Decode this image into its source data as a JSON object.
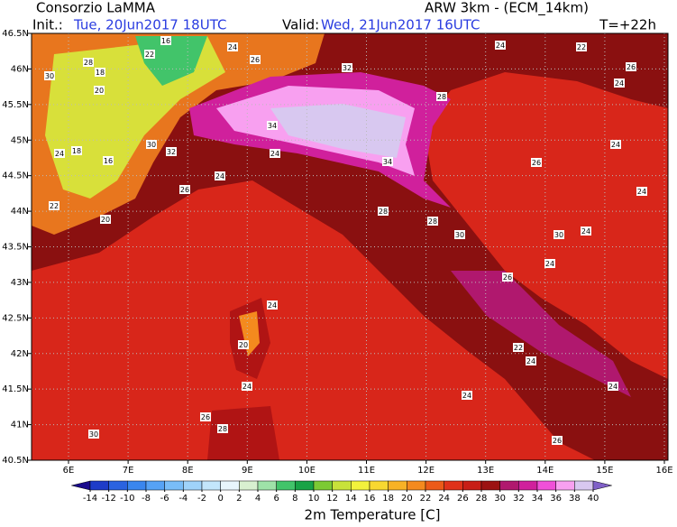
{
  "header": {
    "org": "Consorzio LaMMA",
    "init_label": "Init.:",
    "init_time": "Tue, 20Jun2017  18UTC",
    "model": "ARW 3km - (ECM_14km)",
    "valid_label": "Valid:",
    "valid_time": "Wed, 21Jun2017  16UTC",
    "lead": "T=+22h"
  },
  "map": {
    "lon_labels": [
      "6E",
      "7E",
      "8E",
      "9E",
      "10E",
      "11E",
      "12E",
      "13E",
      "14E",
      "15E",
      "16E"
    ],
    "lat_labels": [
      "46.5N",
      "46N",
      "45.5N",
      "45N",
      "44.5N",
      "44N",
      "43.5N",
      "43N",
      "42.5N",
      "42N",
      "41.5N",
      "41N",
      "40.5N"
    ],
    "point_labels": [
      "30",
      "28",
      "22",
      "16",
      "24",
      "18",
      "20",
      "26",
      "32",
      "28",
      "34",
      "30",
      "18",
      "16",
      "24",
      "22",
      "20",
      "24",
      "26",
      "24",
      "28",
      "30",
      "24",
      "26",
      "34",
      "30",
      "32",
      "28",
      "24",
      "26",
      "22",
      "24",
      "20",
      "24",
      "24",
      "26",
      "28",
      "30",
      "24",
      "22",
      "24",
      "26",
      "24",
      "24",
      "26",
      "24",
      "24"
    ]
  },
  "colorbar": {
    "title": "2m Temperature [C]",
    "ticks": [
      -14,
      -12,
      -10,
      -8,
      -6,
      -4,
      -2,
      0,
      2,
      4,
      6,
      8,
      10,
      12,
      14,
      16,
      18,
      20,
      22,
      24,
      26,
      28,
      30,
      32,
      34,
      36,
      38,
      40
    ],
    "colors": [
      "#1a0a8c",
      "#1e3cc8",
      "#2b63e0",
      "#3a86ee",
      "#56a2f5",
      "#79bdf8",
      "#9fd3fa",
      "#c3e6fb",
      "#e8f6fc",
      "#d8f0d0",
      "#9ee2a8",
      "#42c46a",
      "#18a346",
      "#7cca34",
      "#c8e23a",
      "#f2f23c",
      "#f8d830",
      "#f8b226",
      "#f48a1e",
      "#ec5a18",
      "#e0321a",
      "#c81e16",
      "#9c1212",
      "#b0186e",
      "#d0209c",
      "#f050d8",
      "#f8a0f0",
      "#d8c8f0",
      "#b8a0e8",
      "#8060c8"
    ]
  }
}
